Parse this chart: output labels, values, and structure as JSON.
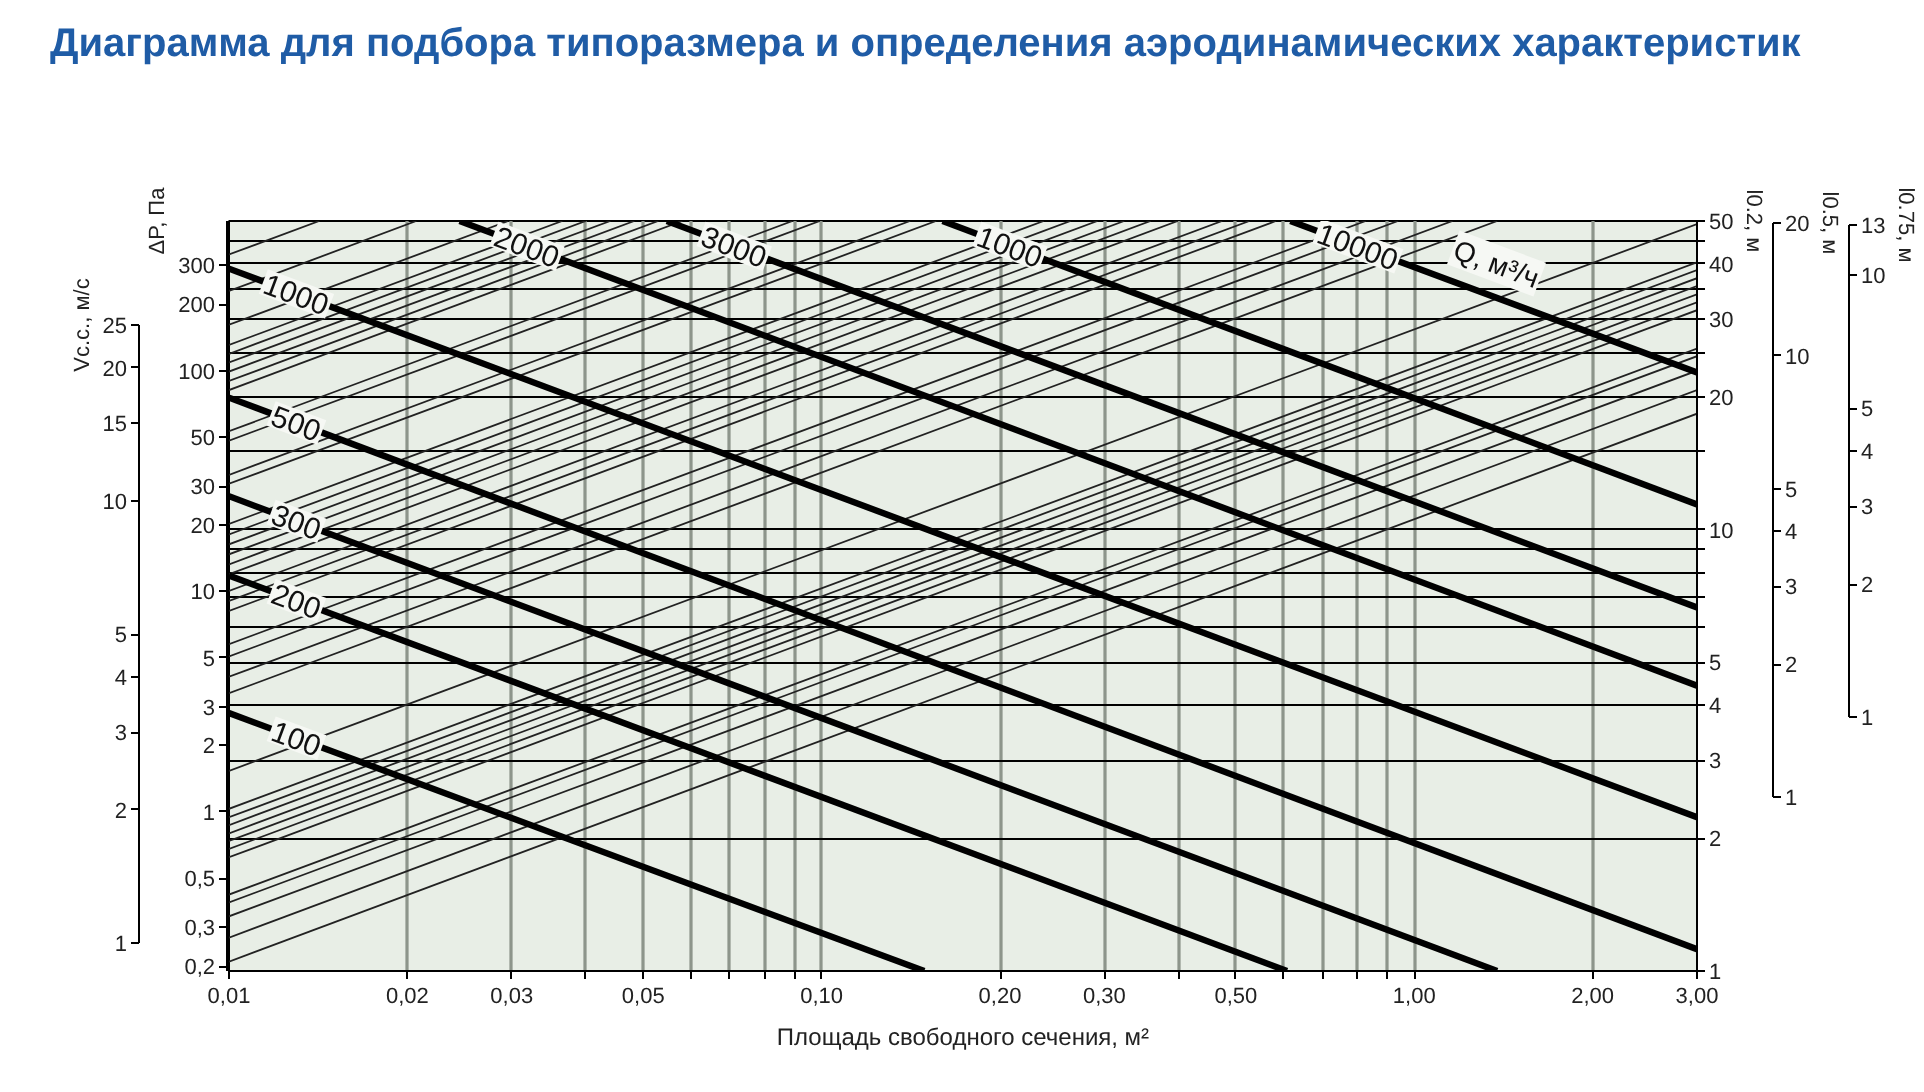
{
  "chart_data": [
    {
      "type": "line",
      "title": "Диаграмма для подбора типоразмера и определения аэродинамических характеристик",
      "ylabel": "Vс.с., м/с",
      "log": "xy",
      "tick_labels": "y",
      "xlim": [
        0.01,
        3
      ],
      "ylim": [
        1,
        25
      ],
      "yticks": [
        1,
        2,
        3,
        4,
        5,
        10,
        15,
        20,
        25
      ]
    },
    {
      "type": "line",
      "ylabel": "ΔP, Па",
      "log": "xy",
      "tick_labels": "y",
      "xlim": [
        0.01,
        3
      ],
      "ylim": [
        0.19,
        477
      ],
      "yticks": [
        {
          "value": 0.2,
          "label": "0,2"
        },
        {
          "value": 0.3,
          "label": "0,3"
        },
        {
          "value": 0.5,
          "label": "0,5"
        },
        1,
        2,
        3,
        5,
        10,
        20,
        30,
        50,
        100,
        200,
        300
      ]
    },
    {
      "type": "line",
      "xlabel": "Площадь свободного сечения, м²",
      "ylabel": "l0.2, м",
      "legend_title": "Q, м³/ч",
      "log": "xy",
      "grid": true,
      "xlim": [
        0.01,
        3
      ],
      "xticks": [
        {
          "value": 0.01,
          "label": "0,01"
        },
        {
          "value": 0.02,
          "label": "0,02"
        },
        {
          "value": 0.03,
          "label": "0,03"
        },
        {
          "value": 0.04,
          "label": null
        },
        {
          "value": 0.05,
          "label": "0,05"
        },
        {
          "value": 0.06,
          "label": null
        },
        {
          "value": 0.07,
          "label": null
        },
        {
          "value": 0.08,
          "label": null
        },
        {
          "value": 0.09,
          "label": null
        },
        {
          "value": 0.1,
          "label": "0,10"
        },
        {
          "value": 0.2,
          "label": "0,20"
        },
        {
          "value": 0.3,
          "label": "0,30"
        },
        {
          "value": 0.4,
          "label": null
        },
        {
          "value": 0.5,
          "label": "0,50"
        },
        {
          "value": 0.6,
          "label": null
        },
        {
          "value": 0.7,
          "label": null
        },
        {
          "value": 0.8,
          "label": null
        },
        {
          "value": 0.9,
          "label": null
        },
        {
          "value": 1,
          "label": "1,00"
        },
        {
          "value": 2,
          "label": "2,00"
        },
        {
          "value": 3,
          "label": "3,00"
        }
      ],
      "ylim": [
        1,
        50
      ],
      "yticks": [
        1,
        2,
        3,
        4,
        5,
        {
          "value": 6,
          "label": null
        },
        {
          "value": 7,
          "label": null
        },
        {
          "value": 8,
          "label": null
        },
        {
          "value": 9,
          "label": null
        },
        10,
        {
          "value": 15,
          "label": null
        },
        20,
        {
          "value": 25,
          "label": null
        },
        30,
        {
          "value": 35,
          "label": null
        },
        40,
        {
          "value": 45,
          "label": null
        },
        50
      ],
      "series": [
        {
          "color": "#222222",
          "x": [
            0.01,
            0.0142
          ],
          "values": [
            42.0,
            50
          ]
        },
        {
          "color": "#222222",
          "x": [
            0.01,
            0.0207
          ],
          "values": [
            34.7,
            50
          ]
        },
        {
          "color": "#222222",
          "x": [
            0.01,
            0.0296
          ],
          "values": [
            29.1,
            50
          ]
        },
        {
          "color": "#222222",
          "x": [
            0.01,
            0.0365
          ],
          "values": [
            26.2,
            50
          ]
        },
        {
          "color": "#222222",
          "x": [
            0.01,
            0.04
          ],
          "values": [
            25.0,
            50
          ]
        },
        {
          "color": "#222222",
          "x": [
            0.01,
            0.044
          ],
          "values": [
            23.9,
            50
          ]
        },
        {
          "color": "#222222",
          "x": [
            0.01,
            0.0483
          ],
          "values": [
            22.8,
            50
          ]
        },
        {
          "color": "#222222",
          "x": [
            0.01,
            0.053
          ],
          "values": [
            21.7,
            50
          ]
        },
        {
          "color": "#222222",
          "x": [
            0.01,
            0.0582
          ],
          "values": [
            20.7,
            50
          ]
        },
        {
          "color": "#222222",
          "x": [
            0.01,
            0.0893
          ],
          "values": [
            16.7,
            50
          ]
        },
        {
          "color": "#222222",
          "x": [
            0.01,
            0.0993
          ],
          "values": [
            15.9,
            50
          ]
        },
        {
          "color": "#222222",
          "x": [
            0.01,
            0.141
          ],
          "values": [
            13.3,
            50
          ]
        },
        {
          "color": "#222222",
          "x": [
            0.01,
            0.156
          ],
          "values": [
            12.7,
            50
          ]
        },
        {
          "color": "#222222",
          "x": [
            0.01,
            0.237
          ],
          "values": [
            10.3,
            50
          ]
        },
        {
          "color": "#222222",
          "x": [
            0.01,
            0.263
          ],
          "values": [
            9.75,
            50
          ]
        },
        {
          "color": "#222222",
          "x": [
            0.01,
            0.292
          ],
          "values": [
            9.26,
            50
          ]
        },
        {
          "color": "#222222",
          "x": [
            0.01,
            0.324
          ],
          "values": [
            8.79,
            50
          ]
        },
        {
          "color": "#222222",
          "x": [
            0.01,
            0.359
          ],
          "values": [
            8.34,
            50
          ]
        },
        {
          "color": "#222222",
          "x": [
            0.01,
            0.399
          ],
          "values": [
            7.92,
            50
          ]
        },
        {
          "color": "#222222",
          "x": [
            0.01,
            0.474
          ],
          "values": [
            7.26,
            50
          ]
        },
        {
          "color": "#222222",
          "x": [
            0.01,
            0.527
          ],
          "values": [
            6.89,
            50
          ]
        },
        {
          "color": "#222222",
          "x": [
            0.01,
            0.584
          ],
          "values": [
            6.54,
            50
          ]
        },
        {
          "color": "#222222",
          "x": [
            0.01,
            0.828
          ],
          "values": [
            5.5,
            50
          ]
        },
        {
          "color": "#222222",
          "x": [
            0.01,
            0.939
          ],
          "values": [
            5.16,
            50
          ]
        },
        {
          "color": "#222222",
          "x": [
            0.01,
            1.16
          ],
          "values": [
            4.64,
            50
          ]
        },
        {
          "color": "#222222",
          "x": [
            0.01,
            1.38
          ],
          "values": [
            4.26,
            50
          ]
        },
        {
          "color": "#222222",
          "x": [
            0.01,
            3
          ],
          "values": [
            2.84,
            49.2
          ]
        },
        {
          "color": "#222222",
          "x": [
            0.01,
            3
          ],
          "values": [
            2.33,
            40.3
          ]
        },
        {
          "color": "#222222",
          "x": [
            0.01,
            3
          ],
          "values": [
            2.23,
            38.7
          ]
        },
        {
          "color": "#222222",
          "x": [
            0.01,
            3
          ],
          "values": [
            2.14,
            37.1
          ]
        },
        {
          "color": "#222222",
          "x": [
            0.01,
            3
          ],
          "values": [
            2.05,
            35.6
          ]
        },
        {
          "color": "#222222",
          "x": [
            0.01,
            3
          ],
          "values": [
            1.97,
            34.1
          ]
        },
        {
          "color": "#222222",
          "x": [
            0.01,
            3
          ],
          "values": [
            1.89,
            32.7
          ]
        },
        {
          "color": "#222222",
          "x": [
            0.01,
            3
          ],
          "values": [
            1.81,
            31.4
          ]
        },
        {
          "color": "#222222",
          "x": [
            0.01,
            3
          ],
          "values": [
            1.49,
            25.7
          ]
        },
        {
          "color": "#222222",
          "x": [
            0.01,
            3
          ],
          "values": [
            1.43,
            24.7
          ]
        },
        {
          "color": "#222222",
          "x": [
            0.01,
            3
          ],
          "values": [
            1.33,
            22.9
          ]
        },
        {
          "color": "#222222",
          "x": [
            0.01,
            3
          ],
          "values": [
            1.19,
            20.7
          ]
        },
        {
          "color": "#222222",
          "x": [
            0.01,
            3
          ],
          "values": [
            1.05,
            18.3
          ]
        },
        {
          "name": "100",
          "color": "#000000",
          "x": [
            0.01,
            0.149
          ],
          "values": [
            3.84,
            1
          ]
        },
        {
          "name": "200",
          "color": "#000000",
          "x": [
            0.01,
            0.61
          ],
          "values": [
            7.87,
            1
          ]
        },
        {
          "name": "300",
          "color": "#000000",
          "x": [
            0.01,
            1.38
          ],
          "values": [
            11.9,
            1
          ]
        },
        {
          "name": "500",
          "color": "#000000",
          "x": [
            0.01,
            3
          ],
          "values": [
            19.9,
            1.12
          ]
        },
        {
          "name": "1000",
          "color": "#000000",
          "x": [
            0.01,
            3
          ],
          "values": [
            39.0,
            2.23
          ]
        },
        {
          "name": "2000",
          "color": "#000000",
          "x": [
            0.0245,
            3
          ],
          "values": [
            50,
            4.43
          ]
        },
        {
          "name": "3000",
          "color": "#000000",
          "x": [
            0.0548,
            3
          ],
          "values": [
            50,
            6.66
          ]
        },
        {
          "name": "1000",
          "color": "#000000",
          "x": [
            0.16,
            3
          ],
          "values": [
            50,
            11.4
          ]
        },
        {
          "name": "10000",
          "color": "#000000",
          "x": [
            0.618,
            3
          ],
          "values": [
            50,
            22.7
          ]
        }
      ]
    },
    {
      "type": "line",
      "ylabel": "l0.5, м",
      "log": "xy",
      "tick_labels": "y",
      "xlim": [
        0.01,
        3
      ],
      "ylim": [
        1,
        20
      ],
      "yticks": [
        1,
        2,
        3,
        4,
        5,
        10,
        20
      ]
    },
    {
      "type": "line",
      "ylabel": "l0.75, м",
      "log": "xy",
      "tick_labels": "y",
      "xlim": [
        0.01,
        3
      ],
      "ylim": [
        1,
        13
      ],
      "yticks": [
        1,
        2,
        3,
        4,
        5,
        10,
        13
      ]
    }
  ]
}
